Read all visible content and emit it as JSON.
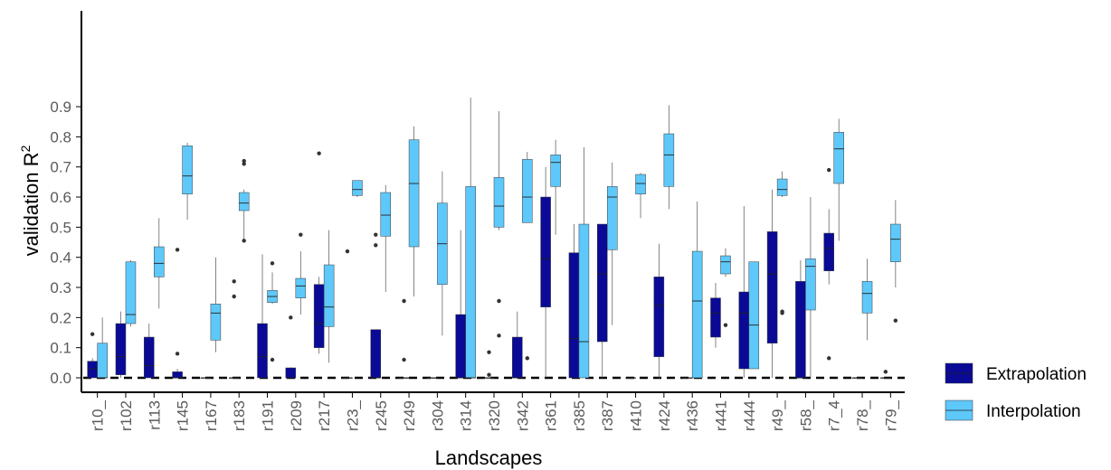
{
  "chart_data": {
    "type": "boxplot",
    "xlabel": "Landscapes",
    "ylabel": "validation R",
    "ylabel_superscript": "2",
    "ylim": [
      0,
      0.93
    ],
    "yticks": [
      "0.0",
      "0.1",
      "0.2",
      "0.3",
      "0.4",
      "0.5",
      "0.6",
      "0.7",
      "0.8",
      "0.9"
    ],
    "reference_line": {
      "y": 0.0,
      "style": "dashed"
    },
    "grid": false,
    "legend_position": "right",
    "colors": {
      "Extrapolation": "#0a0a96",
      "Interpolation": "#5ec8fa"
    },
    "categories": [
      "r10_",
      "r102",
      "r113",
      "r145",
      "r167",
      "r183",
      "r191",
      "r209",
      "r217",
      "r23_",
      "r245",
      "r249",
      "r304",
      "r314",
      "r320",
      "r342",
      "r361",
      "r385",
      "r387",
      "r410",
      "r424",
      "r436",
      "r441",
      "r444",
      "r49_",
      "r58_",
      "r7_4",
      "r78_",
      "r79_"
    ],
    "series": [
      {
        "name": "Extrapolation",
        "boxes": [
          {
            "cat": "r10_",
            "q1": 0.0,
            "median": 0.03,
            "q3": 0.055,
            "lo": 0.0,
            "hi": 0.065,
            "outliers": [
              0.145
            ]
          },
          {
            "cat": "r102",
            "q1": 0.01,
            "median": 0.07,
            "q3": 0.18,
            "lo": 0.0,
            "hi": 0.22,
            "outliers": []
          },
          {
            "cat": "r113",
            "q1": 0.0,
            "median": 0.04,
            "q3": 0.135,
            "lo": 0.0,
            "hi": 0.18,
            "outliers": []
          },
          {
            "cat": "r145",
            "q1": 0.0,
            "median": 0.0,
            "q3": 0.02,
            "lo": 0.0,
            "hi": 0.03,
            "outliers": [
              0.08,
              0.425
            ]
          },
          {
            "cat": "r167",
            "q1": 0.0,
            "median": 0.0,
            "q3": 0.0,
            "lo": 0.0,
            "hi": 0.0,
            "outliers": []
          },
          {
            "cat": "r183",
            "q1": 0.0,
            "median": 0.0,
            "q3": 0.0,
            "lo": 0.0,
            "hi": 0.0,
            "outliers": [
              0.27,
              0.32
            ]
          },
          {
            "cat": "r191",
            "q1": 0.0,
            "median": 0.07,
            "q3": 0.18,
            "lo": 0.0,
            "hi": 0.41,
            "outliers": []
          },
          {
            "cat": "r209",
            "q1": 0.0,
            "median": 0.0,
            "q3": 0.033,
            "lo": 0.0,
            "hi": 0.035,
            "outliers": [
              0.2
            ]
          },
          {
            "cat": "r217",
            "q1": 0.1,
            "median": 0.18,
            "q3": 0.31,
            "lo": 0.08,
            "hi": 0.335,
            "outliers": [
              0.745
            ]
          },
          {
            "cat": "r23_",
            "q1": 0.0,
            "median": 0.0,
            "q3": 0.0,
            "lo": 0.0,
            "hi": 0.0,
            "outliers": [
              0.42
            ]
          },
          {
            "cat": "r245",
            "q1": 0.0,
            "median": 0.0,
            "q3": 0.16,
            "lo": 0.0,
            "hi": 0.16,
            "outliers": [
              0.44,
              0.475
            ]
          },
          {
            "cat": "r249",
            "q1": 0.0,
            "median": 0.0,
            "q3": 0.0,
            "lo": 0.0,
            "hi": 0.0,
            "outliers": [
              0.06,
              0.255
            ]
          },
          {
            "cat": "r304",
            "q1": 0.0,
            "median": 0.0,
            "q3": 0.0,
            "lo": 0.0,
            "hi": 0.0,
            "outliers": []
          },
          {
            "cat": "r314",
            "q1": 0.0,
            "median": 0.0,
            "q3": 0.21,
            "lo": 0.0,
            "hi": 0.49,
            "outliers": []
          },
          {
            "cat": "r320",
            "q1": 0.0,
            "median": 0.0,
            "q3": 0.0,
            "lo": 0.0,
            "hi": 0.0,
            "outliers": [
              0.01,
              0.085
            ]
          },
          {
            "cat": "r342",
            "q1": 0.0,
            "median": 0.0,
            "q3": 0.135,
            "lo": 0.0,
            "hi": 0.22,
            "outliers": []
          },
          {
            "cat": "r361",
            "q1": 0.235,
            "median": 0.395,
            "q3": 0.6,
            "lo": 0.0,
            "hi": 0.7,
            "outliers": []
          },
          {
            "cat": "r385",
            "q1": 0.0,
            "median": 0.13,
            "q3": 0.415,
            "lo": 0.0,
            "hi": 0.51,
            "outliers": []
          },
          {
            "cat": "r387",
            "q1": 0.12,
            "median": 0.345,
            "q3": 0.51,
            "lo": 0.0,
            "hi": 0.51,
            "outliers": []
          },
          {
            "cat": "r410",
            "q1": 0.0,
            "median": 0.0,
            "q3": 0.0,
            "lo": 0.0,
            "hi": 0.0,
            "outliers": []
          },
          {
            "cat": "r424",
            "q1": 0.07,
            "median": 0.24,
            "q3": 0.335,
            "lo": 0.0,
            "hi": 0.445,
            "outliers": []
          },
          {
            "cat": "r436",
            "q1": 0.0,
            "median": 0.0,
            "q3": 0.0,
            "lo": 0.0,
            "hi": 0.0,
            "outliers": []
          },
          {
            "cat": "r441",
            "q1": 0.135,
            "median": 0.215,
            "q3": 0.265,
            "lo": 0.1,
            "hi": 0.315,
            "outliers": []
          },
          {
            "cat": "r444",
            "q1": 0.03,
            "median": 0.215,
            "q3": 0.285,
            "lo": 0.0,
            "hi": 0.57,
            "outliers": []
          },
          {
            "cat": "r49_",
            "q1": 0.115,
            "median": 0.345,
            "q3": 0.485,
            "lo": 0.0,
            "hi": 0.625,
            "outliers": []
          },
          {
            "cat": "r58_",
            "q1": 0.0,
            "median": 0.0,
            "q3": 0.32,
            "lo": 0.0,
            "hi": 0.39,
            "outliers": []
          },
          {
            "cat": "r7_4",
            "q1": 0.355,
            "median": 0.43,
            "q3": 0.48,
            "lo": 0.31,
            "hi": 0.56,
            "outliers": [
              0.065,
              0.69
            ]
          },
          {
            "cat": "r78_",
            "q1": 0.0,
            "median": 0.0,
            "q3": 0.0,
            "lo": 0.0,
            "hi": 0.0,
            "outliers": []
          },
          {
            "cat": "r79_",
            "q1": 0.0,
            "median": 0.0,
            "q3": 0.0,
            "lo": 0.0,
            "hi": 0.0,
            "outliers": [
              0.02
            ]
          }
        ]
      },
      {
        "name": "Interpolation",
        "boxes": [
          {
            "cat": "r10_",
            "q1": 0.0,
            "median": 0.0,
            "q3": 0.115,
            "lo": 0.0,
            "hi": 0.2,
            "outliers": []
          },
          {
            "cat": "r102",
            "q1": 0.18,
            "median": 0.21,
            "q3": 0.385,
            "lo": 0.17,
            "hi": 0.39,
            "outliers": []
          },
          {
            "cat": "r113",
            "q1": 0.335,
            "median": 0.38,
            "q3": 0.435,
            "lo": 0.23,
            "hi": 0.53,
            "outliers": []
          },
          {
            "cat": "r145",
            "q1": 0.61,
            "median": 0.67,
            "q3": 0.77,
            "lo": 0.525,
            "hi": 0.78,
            "outliers": []
          },
          {
            "cat": "r167",
            "q1": 0.125,
            "median": 0.215,
            "q3": 0.245,
            "lo": 0.085,
            "hi": 0.4,
            "outliers": []
          },
          {
            "cat": "r183",
            "q1": 0.555,
            "median": 0.58,
            "q3": 0.615,
            "lo": 0.455,
            "hi": 0.625,
            "outliers": [
              0.455,
              0.71,
              0.72
            ]
          },
          {
            "cat": "r191",
            "q1": 0.25,
            "median": 0.27,
            "q3": 0.29,
            "lo": 0.245,
            "hi": 0.35,
            "outliers": [
              0.06,
              0.38
            ]
          },
          {
            "cat": "r209",
            "q1": 0.265,
            "median": 0.305,
            "q3": 0.33,
            "lo": 0.21,
            "hi": 0.42,
            "outliers": [
              0.475
            ]
          },
          {
            "cat": "r217",
            "q1": 0.17,
            "median": 0.235,
            "q3": 0.375,
            "lo": 0.05,
            "hi": 0.49,
            "outliers": []
          },
          {
            "cat": "r23_",
            "q1": 0.605,
            "median": 0.625,
            "q3": 0.655,
            "lo": 0.6,
            "hi": 0.655,
            "outliers": []
          },
          {
            "cat": "r245",
            "q1": 0.47,
            "median": 0.54,
            "q3": 0.615,
            "lo": 0.285,
            "hi": 0.64,
            "outliers": []
          },
          {
            "cat": "r249",
            "q1": 0.435,
            "median": 0.645,
            "q3": 0.79,
            "lo": 0.27,
            "hi": 0.835,
            "outliers": []
          },
          {
            "cat": "r304",
            "q1": 0.31,
            "median": 0.445,
            "q3": 0.58,
            "lo": 0.14,
            "hi": 0.685,
            "outliers": []
          },
          {
            "cat": "r314",
            "q1": 0.0,
            "median": 0.0,
            "q3": 0.635,
            "lo": 0.0,
            "hi": 0.93,
            "outliers": []
          },
          {
            "cat": "r320",
            "q1": 0.5,
            "median": 0.57,
            "q3": 0.665,
            "lo": 0.49,
            "hi": 0.885,
            "outliers": [
              0.14,
              0.255
            ]
          },
          {
            "cat": "r342",
            "q1": 0.515,
            "median": 0.6,
            "q3": 0.725,
            "lo": 0.515,
            "hi": 0.75,
            "outliers": [
              0.065
            ]
          },
          {
            "cat": "r361",
            "q1": 0.635,
            "median": 0.715,
            "q3": 0.74,
            "lo": 0.475,
            "hi": 0.79,
            "outliers": []
          },
          {
            "cat": "r385",
            "q1": 0.0,
            "median": 0.12,
            "q3": 0.51,
            "lo": 0.0,
            "hi": 0.765,
            "outliers": []
          },
          {
            "cat": "r387",
            "q1": 0.425,
            "median": 0.6,
            "q3": 0.635,
            "lo": 0.175,
            "hi": 0.715,
            "outliers": []
          },
          {
            "cat": "r410",
            "q1": 0.61,
            "median": 0.645,
            "q3": 0.675,
            "lo": 0.53,
            "hi": 0.68,
            "outliers": []
          },
          {
            "cat": "r424",
            "q1": 0.635,
            "median": 0.74,
            "q3": 0.81,
            "lo": 0.56,
            "hi": 0.905,
            "outliers": []
          },
          {
            "cat": "r436",
            "q1": 0.0,
            "median": 0.255,
            "q3": 0.42,
            "lo": 0.0,
            "hi": 0.585,
            "outliers": []
          },
          {
            "cat": "r441",
            "q1": 0.345,
            "median": 0.385,
            "q3": 0.405,
            "lo": 0.335,
            "hi": 0.43,
            "outliers": [
              0.175
            ]
          },
          {
            "cat": "r444",
            "q1": 0.03,
            "median": 0.175,
            "q3": 0.385,
            "lo": 0.03,
            "hi": 0.385,
            "outliers": []
          },
          {
            "cat": "r49_",
            "q1": 0.605,
            "median": 0.625,
            "q3": 0.66,
            "lo": 0.6,
            "hi": 0.685,
            "outliers": [
              0.215,
              0.22
            ]
          },
          {
            "cat": "r58_",
            "q1": 0.225,
            "median": 0.37,
            "q3": 0.395,
            "lo": 0.0,
            "hi": 0.6,
            "outliers": []
          },
          {
            "cat": "r7_4",
            "q1": 0.645,
            "median": 0.76,
            "q3": 0.815,
            "lo": 0.455,
            "hi": 0.86,
            "outliers": []
          },
          {
            "cat": "r78_",
            "q1": 0.215,
            "median": 0.28,
            "q3": 0.32,
            "lo": 0.125,
            "hi": 0.395,
            "outliers": []
          },
          {
            "cat": "r79_",
            "q1": 0.385,
            "median": 0.46,
            "q3": 0.51,
            "lo": 0.3,
            "hi": 0.59,
            "outliers": [
              0.19
            ]
          }
        ]
      }
    ]
  }
}
